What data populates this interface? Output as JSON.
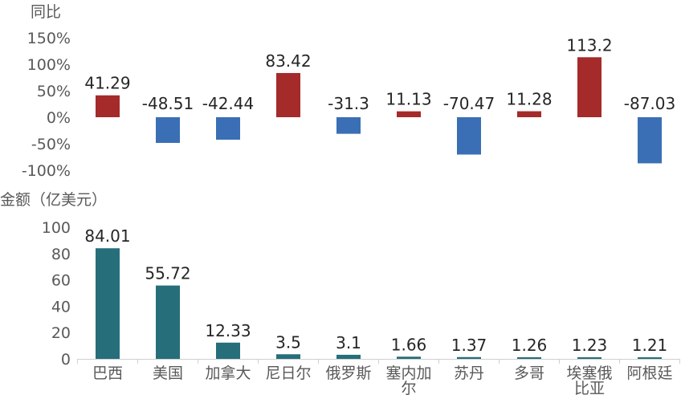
{
  "chart_data": [
    {
      "type": "bar",
      "ylabel": "同比",
      "categories": [
        "巴西",
        "美国",
        "加拿大",
        "尼日尔",
        "俄罗斯",
        "塞内加尔",
        "苏丹",
        "多哥",
        "埃塞俄比亚",
        "阿根廷"
      ],
      "values": [
        41.29,
        -48.51,
        -42.44,
        83.42,
        -31.3,
        11.13,
        -70.47,
        11.28,
        113.2,
        -87.03
      ],
      "value_labels": [
        "41.29",
        "-48.51",
        "-42.44",
        "83.42",
        "-31.3",
        "11.13",
        "-70.47",
        "11.28",
        "113.2",
        "-87.03"
      ],
      "yticks": [
        "150%",
        "100%",
        "50%",
        "0%",
        "-50%",
        "-100%"
      ],
      "ylim": [
        -100,
        150
      ],
      "grid": false,
      "colors": {
        "positive": "#A52A2A",
        "negative": "#3A6FB5"
      }
    },
    {
      "type": "bar",
      "ylabel": "金额（亿美元）",
      "categories": [
        "巴西",
        "美国",
        "加拿大",
        "尼日尔",
        "俄罗斯",
        "塞内加尔",
        "苏丹",
        "多哥",
        "埃塞俄比亚",
        "阿根廷"
      ],
      "category_labels": [
        [
          "巴西"
        ],
        [
          "美国"
        ],
        [
          "加拿大"
        ],
        [
          "尼日尔"
        ],
        [
          "俄罗斯"
        ],
        [
          "塞内加",
          "尔"
        ],
        [
          "苏丹"
        ],
        [
          "多哥"
        ],
        [
          "埃塞俄",
          "比亚"
        ],
        [
          "阿根廷"
        ]
      ],
      "values": [
        84.01,
        55.72,
        12.33,
        3.5,
        3.1,
        1.66,
        1.37,
        1.26,
        1.23,
        1.21
      ],
      "value_labels": [
        "84.01",
        "55.72",
        "12.33",
        "3.5",
        "3.1",
        "1.66",
        "1.37",
        "1.26",
        "1.23",
        "1.21"
      ],
      "yticks": [
        "100",
        "80",
        "60",
        "40",
        "20",
        "0"
      ],
      "ylim": [
        0,
        100
      ],
      "grid": false,
      "colors": {
        "bar": "#266E7A"
      }
    }
  ]
}
